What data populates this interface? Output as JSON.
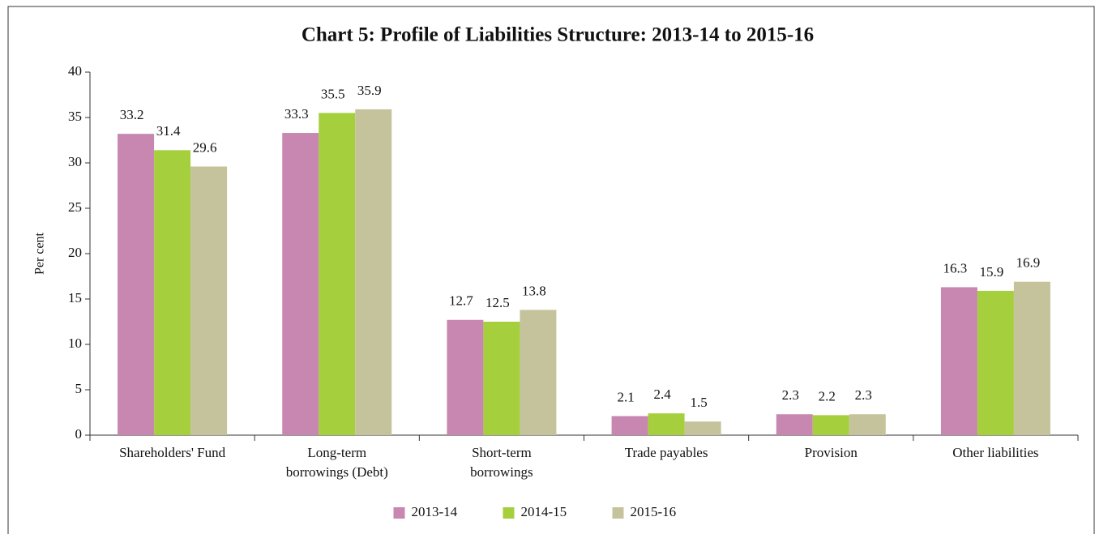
{
  "chart_data": {
    "type": "bar",
    "title": "Chart 5: Profile of Liabilities Structure: 2013-14 to 2015-16",
    "y_label": "Per cent",
    "categories": [
      "Shareholders' Fund",
      "Long-term borrowings (Debt)",
      "Short-term borrowings",
      "Trade payables",
      "Provision",
      "Other liabilities"
    ],
    "series": [
      {
        "name": "2013-14",
        "color": "#c887b0",
        "values": [
          33.2,
          33.3,
          12.7,
          2.1,
          2.3,
          16.3
        ]
      },
      {
        "name": "2014-15",
        "color": "#a6cf3e",
        "values": [
          31.4,
          35.5,
          12.5,
          2.4,
          2.2,
          15.9
        ]
      },
      {
        "name": "2015-16",
        "color": "#c4c39c",
        "values": [
          29.6,
          35.9,
          13.8,
          1.5,
          2.3,
          16.9
        ]
      }
    ],
    "ylim": [
      0,
      40
    ],
    "yticks": [
      0,
      5,
      10,
      15,
      20,
      25,
      30,
      35,
      40
    ],
    "legend": "bottom"
  }
}
